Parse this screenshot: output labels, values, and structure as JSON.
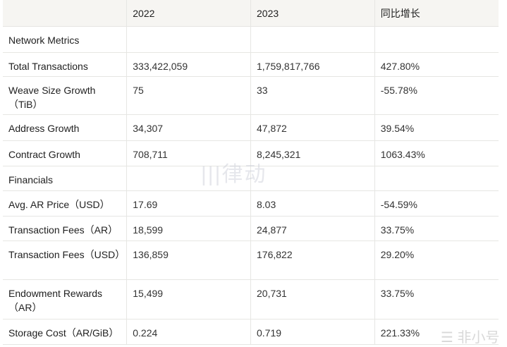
{
  "headers": [
    "",
    "2022",
    "2023",
    "同比增长"
  ],
  "rows": [
    {
      "label": "Network Metrics",
      "v": [
        "",
        "",
        ""
      ],
      "section": true
    },
    {
      "label": "Total Transactions",
      "v": [
        "333,422,059",
        "1,759,817,766",
        "427.80%"
      ]
    },
    {
      "label": "Weave Size Growth（TiB）",
      "v": [
        "75",
        "33",
        "-55.78%"
      ]
    },
    {
      "label": "Address Growth",
      "v": [
        "34,307",
        "47,872",
        "39.54%"
      ]
    },
    {
      "label": "Contract Growth",
      "v": [
        "708,711",
        "8,245,321",
        "1063.43%"
      ]
    },
    {
      "label": "Financials",
      "v": [
        "",
        "",
        ""
      ],
      "section": true
    },
    {
      "label": "Avg. AR Price（USD）",
      "v": [
        "17.69",
        "8.03",
        "-54.59%"
      ]
    },
    {
      "label": "Transaction Fees（AR）",
      "v": [
        "18,599",
        "24,877",
        "33.75%"
      ]
    },
    {
      "label": "Transaction Fees（USD）",
      "v": [
        "136,859",
        "176,822",
        "29.20%"
      ]
    },
    {
      "label": "Endowment Rewards（AR）",
      "v": [
        "15,499",
        "20,731",
        "33.75%"
      ]
    },
    {
      "label": "Storage Cost（AR/GiB）",
      "v": [
        "0.224",
        "0.719",
        "221.33%"
      ]
    }
  ],
  "watermarks": [
    "律动",
    "非小号"
  ]
}
